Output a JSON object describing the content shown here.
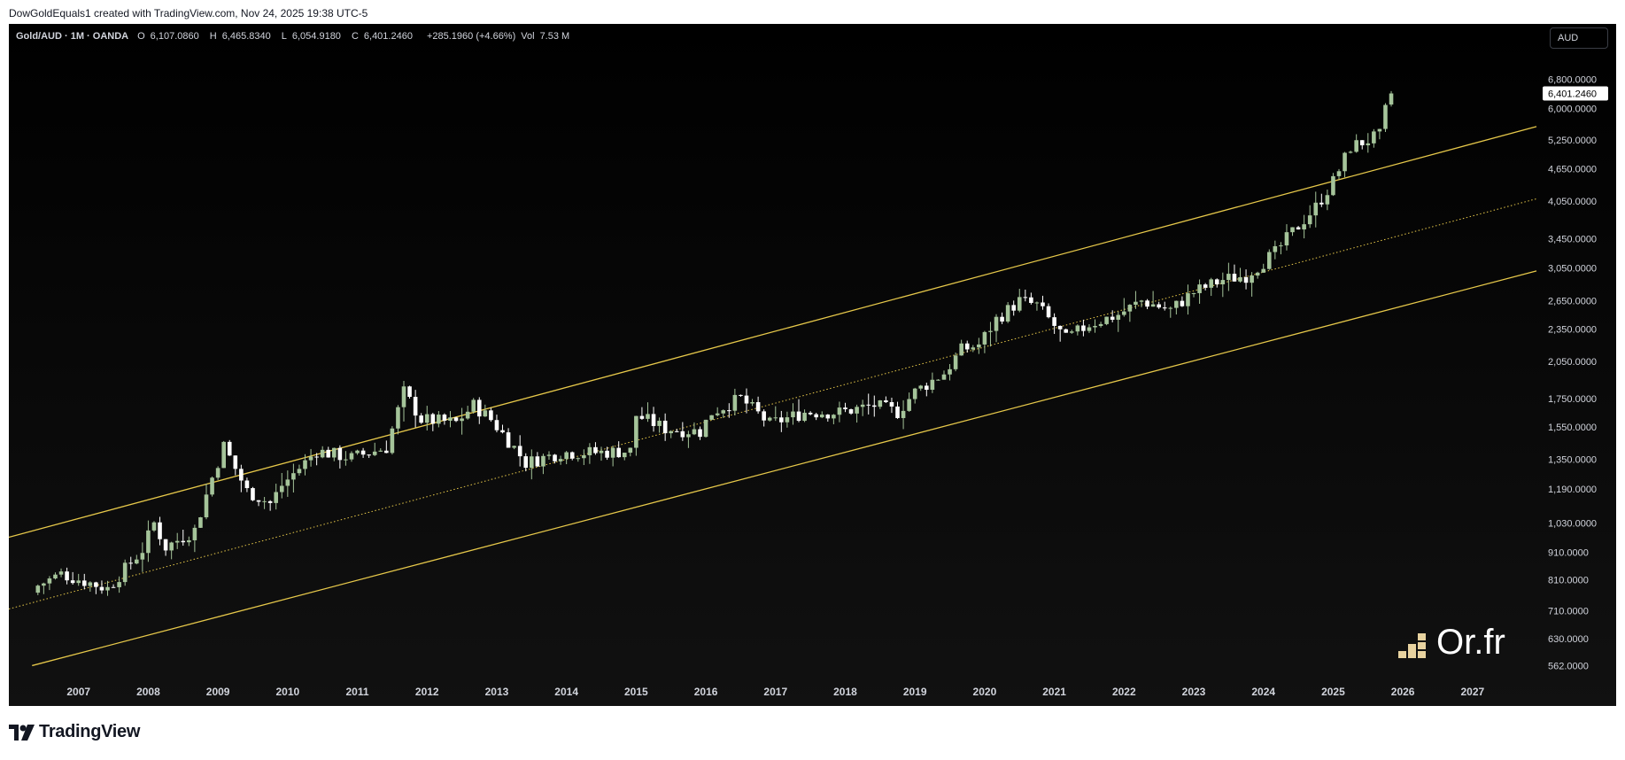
{
  "header": {
    "text": "DowGoldEquals1 created with TradingView.com, Nov 24, 2025 19:38 UTC-5"
  },
  "legend": {
    "symbol": "Gold/AUD · 1M · OANDA",
    "open_label": "O",
    "open": "6,107.0860",
    "high_label": "H",
    "high": "6,465.8340",
    "low_label": "L",
    "low": "6,054.9180",
    "close_label": "C",
    "close": "6,401.2460",
    "change": "+285.1960 (+4.66%)",
    "vol_label": "Vol",
    "vol": "7.53 M"
  },
  "currency_button": "AUD",
  "price_tag": "6,401.2460",
  "watermark": "Or.fr",
  "footer_brand": "TradingView",
  "colors": {
    "background": "#000000",
    "candle_up": "#a5c49a",
    "candle_down": "#ffffff",
    "channel": "#e6c84a",
    "text": "#d1d4dc",
    "watermark_bars": "#e8d3a0"
  },
  "chart_data": {
    "type": "candlestick",
    "y_scale": "log",
    "title": "",
    "xlabel": "",
    "ylabel": "",
    "ylim": [
      530,
      7400
    ],
    "xlim": [
      "2006-01",
      "2027-12"
    ],
    "x_ticks": [
      "2007",
      "2008",
      "2009",
      "2010",
      "2011",
      "2012",
      "2013",
      "2014",
      "2015",
      "2016",
      "2017",
      "2018",
      "2019",
      "2020",
      "2021",
      "2022",
      "2023",
      "2024",
      "2025",
      "2026",
      "2027"
    ],
    "y_ticks": [
      "6,800.0000",
      "6,000.0000",
      "5,250.0000",
      "4,650.0000",
      "4,050.0000",
      "3,450.0000",
      "3,050.0000",
      "2,650.0000",
      "2,350.0000",
      "2,050.0000",
      "1,750.0000",
      "1,550.0000",
      "1,350.0000",
      "1,190.0000",
      "1,030.0000",
      "910.0000",
      "810.0000",
      "710.0000",
      "630.0000",
      "562.0000"
    ],
    "channel": {
      "upper": {
        "start": [
          "2006-01",
          970
        ],
        "end": [
          "2027-12",
          5560
        ]
      },
      "middle": {
        "start": [
          "2006-01",
          715
        ],
        "end": [
          "2027-12",
          4090
        ]
      },
      "lower": {
        "start": [
          "2006-05",
          562
        ],
        "end": [
          "2027-12",
          3010
        ]
      }
    },
    "monthly_close_anchors": [
      [
        "2006-06",
        790
      ],
      [
        "2006-10",
        830
      ],
      [
        "2007-06",
        780
      ],
      [
        "2007-12",
        920
      ],
      [
        "2008-02",
        1030
      ],
      [
        "2008-04",
        930
      ],
      [
        "2008-09",
        1000
      ],
      [
        "2008-12",
        1250
      ],
      [
        "2009-02",
        1430
      ],
      [
        "2009-06",
        1180
      ],
      [
        "2009-10",
        1120
      ],
      [
        "2009-12",
        1210
      ],
      [
        "2010-06",
        1400
      ],
      [
        "2010-12",
        1360
      ],
      [
        "2011-06",
        1420
      ],
      [
        "2011-09",
        1800
      ],
      [
        "2011-12",
        1600
      ],
      [
        "2012-06",
        1580
      ],
      [
        "2012-09",
        1700
      ],
      [
        "2012-12",
        1600
      ],
      [
        "2013-04",
        1420
      ],
      [
        "2013-06",
        1330
      ],
      [
        "2013-12",
        1390
      ],
      [
        "2014-06",
        1390
      ],
      [
        "2014-12",
        1400
      ],
      [
        "2015-01",
        1630
      ],
      [
        "2015-06",
        1540
      ],
      [
        "2015-12",
        1520
      ],
      [
        "2016-02",
        1650
      ],
      [
        "2016-07",
        1750
      ],
      [
        "2016-12",
        1570
      ],
      [
        "2017-06",
        1650
      ],
      [
        "2017-12",
        1650
      ],
      [
        "2018-06",
        1700
      ],
      [
        "2018-10",
        1650
      ],
      [
        "2019-01",
        1800
      ],
      [
        "2019-06",
        1950
      ],
      [
        "2019-09",
        2150
      ],
      [
        "2019-12",
        2200
      ],
      [
        "2020-03",
        2450
      ],
      [
        "2020-07",
        2650
      ],
      [
        "2020-10",
        2600
      ],
      [
        "2021-03",
        2250
      ],
      [
        "2021-07",
        2400
      ],
      [
        "2021-12",
        2500
      ],
      [
        "2022-04",
        2650
      ],
      [
        "2022-09",
        2550
      ],
      [
        "2023-01",
        2750
      ],
      [
        "2023-06",
        2900
      ],
      [
        "2023-10",
        2950
      ],
      [
        "2024-03",
        3250
      ],
      [
        "2024-06",
        3550
      ],
      [
        "2024-10",
        3950
      ],
      [
        "2025-01",
        4400
      ],
      [
        "2025-04",
        5100
      ],
      [
        "2025-09",
        5350
      ],
      [
        "2025-10",
        5950
      ],
      [
        "2025-11",
        6401.246
      ]
    ]
  }
}
